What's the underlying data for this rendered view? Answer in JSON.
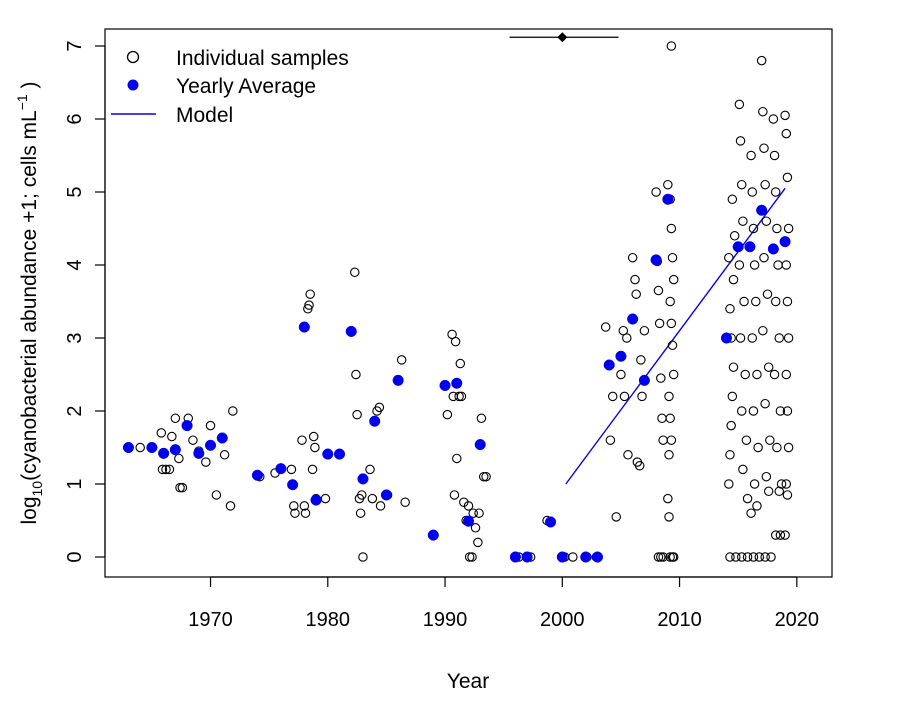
{
  "chart_data": {
    "type": "scatter",
    "xlabel": "Year",
    "ylabel": "log10(cyanobacterial abundance +1; cells mL^-1 )",
    "xlim": [
      1961,
      2023
    ],
    "ylim": [
      0,
      7
    ],
    "x_ticks": [
      1970,
      1980,
      1990,
      2000,
      2010,
      2020
    ],
    "y_ticks": [
      0,
      1,
      2,
      3,
      4,
      5,
      6,
      7
    ],
    "grid": false,
    "legend": {
      "position": "top-left",
      "entries": [
        {
          "label": "Individual samples",
          "style": "open-circle",
          "color": "#000000"
        },
        {
          "label": "Yearly Average",
          "style": "filled-circle",
          "color": "#0000ee"
        },
        {
          "label": "Model",
          "style": "line",
          "color": "#0000ee"
        }
      ]
    },
    "series": [
      {
        "name": "Individual samples",
        "style": "open-circle",
        "color": "#000000",
        "points": [
          [
            1963,
            1.5
          ],
          [
            1964,
            1.5
          ],
          [
            1965,
            1.5
          ],
          [
            1965.8,
            1.7
          ],
          [
            1965.9,
            1.2
          ],
          [
            1966.2,
            1.2
          ],
          [
            1966.5,
            1.2
          ],
          [
            1966.7,
            1.65
          ],
          [
            1967,
            1.9
          ],
          [
            1967.3,
            1.35
          ],
          [
            1967.4,
            0.95
          ],
          [
            1967.6,
            0.95
          ],
          [
            1968.1,
            1.9
          ],
          [
            1968.5,
            1.6
          ],
          [
            1969,
            1.45
          ],
          [
            1969.6,
            1.3
          ],
          [
            1970,
            1.8
          ],
          [
            1970.5,
            0.85
          ],
          [
            1971.2,
            1.4
          ],
          [
            1971.7,
            0.7
          ],
          [
            1971.9,
            2.0
          ],
          [
            1974.2,
            1.1
          ],
          [
            1975.5,
            1.15
          ],
          [
            1976.9,
            1.2
          ],
          [
            1977.1,
            0.7
          ],
          [
            1977.2,
            0.6
          ],
          [
            1977.8,
            1.6
          ],
          [
            1978,
            0.7
          ],
          [
            1978.1,
            0.6
          ],
          [
            1978.3,
            3.4
          ],
          [
            1978.4,
            3.45
          ],
          [
            1978.5,
            3.6
          ],
          [
            1978.7,
            1.2
          ],
          [
            1978.8,
            1.65
          ],
          [
            1978.9,
            1.5
          ],
          [
            1979,
            0.8
          ],
          [
            1979.8,
            0.8
          ],
          [
            1982.3,
            3.9
          ],
          [
            1982.4,
            2.5
          ],
          [
            1982.5,
            1.95
          ],
          [
            1982.7,
            0.8
          ],
          [
            1982.8,
            0.6
          ],
          [
            1982.9,
            0.85
          ],
          [
            1983,
            0.0
          ],
          [
            1983.6,
            1.2
          ],
          [
            1983.8,
            0.8
          ],
          [
            1984.2,
            2.0
          ],
          [
            1984.4,
            2.05
          ],
          [
            1984.5,
            0.7
          ],
          [
            1985.1,
            0.85
          ],
          [
            1986.3,
            2.7
          ],
          [
            1986.6,
            0.75
          ],
          [
            1990.2,
            1.95
          ],
          [
            1990.6,
            3.05
          ],
          [
            1990.7,
            2.2
          ],
          [
            1990.8,
            0.85
          ],
          [
            1990.9,
            2.95
          ],
          [
            1991,
            1.35
          ],
          [
            1991.2,
            2.2
          ],
          [
            1991.3,
            2.65
          ],
          [
            1991.4,
            2.2
          ],
          [
            1991.6,
            0.75
          ],
          [
            1991.8,
            0.5
          ],
          [
            1992,
            0.7
          ],
          [
            1992.1,
            0.0
          ],
          [
            1992.3,
            0.0
          ],
          [
            1992.4,
            0.6
          ],
          [
            1992.6,
            0.4
          ],
          [
            1992.8,
            0.2
          ],
          [
            1992.9,
            0.6
          ],
          [
            1993.1,
            1.9
          ],
          [
            1993.3,
            1.1
          ],
          [
            1993.5,
            1.1
          ],
          [
            1996.3,
            0.0
          ],
          [
            1997.3,
            0.0
          ],
          [
            1998.7,
            0.5
          ],
          [
            2000.2,
            0.0
          ],
          [
            2000.9,
            0.0
          ],
          [
            2002.1,
            0.0
          ],
          [
            2002.9,
            0.0
          ],
          [
            2003.7,
            3.15
          ],
          [
            2004.1,
            1.6
          ],
          [
            2004.3,
            2.2
          ],
          [
            2004.6,
            0.55
          ],
          [
            2005,
            2.5
          ],
          [
            2005.2,
            3.1
          ],
          [
            2005.3,
            2.2
          ],
          [
            2005.5,
            3.0
          ],
          [
            2005.6,
            1.4
          ],
          [
            2006,
            4.1
          ],
          [
            2006.2,
            3.8
          ],
          [
            2006.3,
            3.6
          ],
          [
            2006.4,
            1.3
          ],
          [
            2006.6,
            1.25
          ],
          [
            2006.7,
            2.7
          ],
          [
            2006.8,
            2.2
          ],
          [
            2007,
            3.1
          ],
          [
            2008,
            5.0
          ],
          [
            2008.1,
            4.05
          ],
          [
            2008.2,
            3.65
          ],
          [
            2008.3,
            3.2
          ],
          [
            2008.4,
            2.45
          ],
          [
            2008.5,
            1.9
          ],
          [
            2008.6,
            1.6
          ],
          [
            2008.2,
            0.0
          ],
          [
            2008.4,
            0.0
          ],
          [
            2008.6,
            0.0
          ],
          [
            2009,
            5.1
          ],
          [
            2009.2,
            4.9
          ],
          [
            2009.3,
            4.5
          ],
          [
            2009.4,
            4.1
          ],
          [
            2009.5,
            3.8
          ],
          [
            2009.2,
            3.5
          ],
          [
            2009.3,
            3.2
          ],
          [
            2009.4,
            2.9
          ],
          [
            2009.5,
            2.5
          ],
          [
            2009.1,
            2.2
          ],
          [
            2009.2,
            1.9
          ],
          [
            2009.3,
            1.6
          ],
          [
            2009.1,
            1.4
          ],
          [
            2009,
            0.8
          ],
          [
            2009.1,
            0.55
          ],
          [
            2009.3,
            7.0
          ],
          [
            2009.2,
            0.0
          ],
          [
            2009.4,
            0.0
          ],
          [
            2009.5,
            0.0
          ],
          [
            2014.2,
            1.0
          ],
          [
            2014.3,
            1.4
          ],
          [
            2014.4,
            1.8
          ],
          [
            2014.5,
            2.2
          ],
          [
            2014.6,
            2.6
          ],
          [
            2014.4,
            3.0
          ],
          [
            2014.3,
            3.4
          ],
          [
            2014.6,
            3.8
          ],
          [
            2014.2,
            4.1
          ],
          [
            2014.7,
            4.4
          ],
          [
            2014.5,
            4.9
          ],
          [
            2015.1,
            6.2
          ],
          [
            2015.2,
            5.7
          ],
          [
            2015.3,
            5.1
          ],
          [
            2015.4,
            4.6
          ],
          [
            2015.1,
            4.0
          ],
          [
            2015.5,
            3.5
          ],
          [
            2015.2,
            3.0
          ],
          [
            2015.6,
            2.5
          ],
          [
            2015.3,
            2.0
          ],
          [
            2015.7,
            1.6
          ],
          [
            2015.4,
            1.2
          ],
          [
            2015.8,
            0.8
          ],
          [
            2016.1,
            5.5
          ],
          [
            2016.2,
            5.0
          ],
          [
            2016.3,
            4.5
          ],
          [
            2016.4,
            4.0
          ],
          [
            2016.5,
            3.5
          ],
          [
            2016.2,
            3.0
          ],
          [
            2016.6,
            2.5
          ],
          [
            2016.3,
            2.0
          ],
          [
            2016.7,
            1.5
          ],
          [
            2016.4,
            1.0
          ],
          [
            2016.1,
            0.6
          ],
          [
            2016.6,
            0.7
          ],
          [
            2017,
            6.8
          ],
          [
            2017.1,
            6.1
          ],
          [
            2017.2,
            5.6
          ],
          [
            2017.3,
            5.1
          ],
          [
            2017.4,
            4.6
          ],
          [
            2017.2,
            4.1
          ],
          [
            2017.5,
            3.6
          ],
          [
            2017.1,
            3.1
          ],
          [
            2017.6,
            2.6
          ],
          [
            2017.3,
            2.1
          ],
          [
            2017.7,
            1.6
          ],
          [
            2017.4,
            1.1
          ],
          [
            2017.6,
            0.9
          ],
          [
            2018,
            6.0
          ],
          [
            2018.1,
            5.5
          ],
          [
            2018.2,
            5.0
          ],
          [
            2018.3,
            4.5
          ],
          [
            2018.4,
            4.0
          ],
          [
            2018.2,
            3.5
          ],
          [
            2018.5,
            3.0
          ],
          [
            2018.1,
            2.5
          ],
          [
            2018.6,
            2.0
          ],
          [
            2018.3,
            1.5
          ],
          [
            2018.7,
            1.0
          ],
          [
            2018.5,
            0.9
          ],
          [
            2019,
            6.05
          ],
          [
            2019.1,
            5.8
          ],
          [
            2019.2,
            5.2
          ],
          [
            2019.3,
            4.5
          ],
          [
            2019.1,
            4.0
          ],
          [
            2019.2,
            3.5
          ],
          [
            2019.3,
            3.0
          ],
          [
            2019.1,
            2.5
          ],
          [
            2019.2,
            2.0
          ],
          [
            2019.3,
            1.5
          ],
          [
            2019.1,
            1.0
          ],
          [
            2019.2,
            0.85
          ],
          [
            2014.3,
            0.0
          ],
          [
            2014.8,
            0.0
          ],
          [
            2015.3,
            0.0
          ],
          [
            2015.8,
            0.0
          ],
          [
            2016.3,
            0.0
          ],
          [
            2016.8,
            0.0
          ],
          [
            2017.3,
            0.0
          ],
          [
            2017.8,
            0.0
          ],
          [
            2018.2,
            0.3
          ],
          [
            2018.6,
            0.3
          ],
          [
            2019,
            0.3
          ]
        ]
      },
      {
        "name": "Yearly Average",
        "style": "filled-circle",
        "color": "#0000ee",
        "points": [
          [
            1963,
            1.5
          ],
          [
            1965,
            1.5
          ],
          [
            1966,
            1.42
          ],
          [
            1967,
            1.47
          ],
          [
            1968,
            1.8
          ],
          [
            1969,
            1.42
          ],
          [
            1970,
            1.53
          ],
          [
            1971,
            1.63
          ],
          [
            1974,
            1.12
          ],
          [
            1976,
            1.21
          ],
          [
            1977,
            0.99
          ],
          [
            1978,
            3.15
          ],
          [
            1979,
            0.78
          ],
          [
            1980,
            1.41
          ],
          [
            1981,
            1.41
          ],
          [
            1982,
            3.09
          ],
          [
            1983,
            1.07
          ],
          [
            1984,
            1.86
          ],
          [
            1985,
            0.85
          ],
          [
            1986,
            2.42
          ],
          [
            1989,
            0.3
          ],
          [
            1990,
            2.35
          ],
          [
            1991,
            2.38
          ],
          [
            1992,
            0.49
          ],
          [
            1993,
            1.54
          ],
          [
            1996,
            0.0
          ],
          [
            1997,
            0.0
          ],
          [
            1999,
            0.48
          ],
          [
            2000,
            0.0
          ],
          [
            2002,
            0.0
          ],
          [
            2003,
            0.0
          ],
          [
            2004,
            2.63
          ],
          [
            2005,
            2.75
          ],
          [
            2006,
            3.26
          ],
          [
            2007,
            2.42
          ],
          [
            2008,
            4.07
          ],
          [
            2009,
            4.9
          ],
          [
            2014,
            3.0
          ],
          [
            2015,
            4.25
          ],
          [
            2016,
            4.25
          ],
          [
            2017,
            4.75
          ],
          [
            2018,
            4.22
          ],
          [
            2019,
            4.32
          ]
        ]
      },
      {
        "name": "Model",
        "style": "line",
        "color": "#0000ee",
        "points": [
          [
            2000.3,
            1.0
          ],
          [
            2019,
            5.05
          ]
        ]
      }
    ],
    "annotations": [
      {
        "type": "interval",
        "x_from": 1995.5,
        "x_to": 2004.8,
        "y": 7.12,
        "marker_x": 2000.0
      }
    ]
  }
}
